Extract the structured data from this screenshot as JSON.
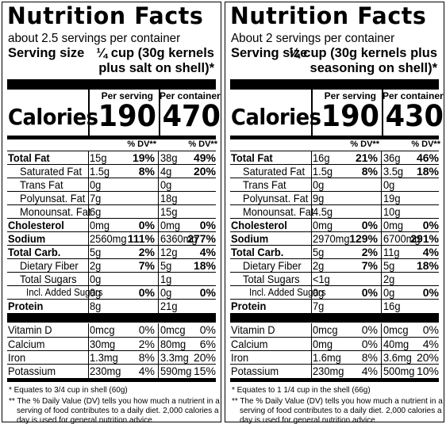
{
  "labels": [
    {
      "title": "Nutrition Facts",
      "servings_per_container": "about 2.5 servings per container",
      "serving_size_label": "Serving size",
      "serving_size_line1": "¼ cup (30g kernels",
      "serving_size_line2": "plus salt on shell)*",
      "per_serving_header": "Per serving",
      "per_container_header": "Per container",
      "calories_label": "Calories",
      "calories_serving": "190",
      "calories_container": "470",
      "dv_header_serving": "% DV**",
      "dv_header_container": "% DV**",
      "nutrients": [
        {
          "label": "Total Fat",
          "amt1": "15g",
          "dv1": "19%",
          "amt2": "38g",
          "dv2": "49%"
        },
        {
          "label": "Saturated Fat",
          "amt1": "1.5g",
          "dv1": "8%",
          "amt2": "4g",
          "dv2": "20%"
        },
        {
          "label": "Trans Fat",
          "amt1": "0g",
          "dv1": "",
          "amt2": "0g",
          "dv2": ""
        },
        {
          "label": "Polyunsat. Fat",
          "amt1": "7g",
          "dv1": "",
          "amt2": "18g",
          "dv2": ""
        },
        {
          "label": "Monounsat. Fat",
          "amt1": "6g",
          "dv1": "",
          "amt2": "15g",
          "dv2": ""
        },
        {
          "label": "Cholesterol",
          "amt1": "0mg",
          "dv1": "0%",
          "amt2": "0mg",
          "dv2": "0%"
        },
        {
          "label": "Sodium",
          "amt1": "2560mg",
          "dv1": "111%",
          "amt2": "6360mg",
          "dv2": "277%"
        },
        {
          "label": "Total Carb.",
          "amt1": "5g",
          "dv1": "2%",
          "amt2": "12g",
          "dv2": "4%"
        },
        {
          "label": "Dietary Fiber",
          "amt1": "2g",
          "dv1": "7%",
          "amt2": "5g",
          "dv2": "18%"
        },
        {
          "label": "Total Sugars",
          "amt1": "0g",
          "dv1": "",
          "amt2": "1g",
          "dv2": ""
        },
        {
          "label": "Incl. Added Sugars",
          "amt1": "0g",
          "dv1": "0%",
          "amt2": "0g",
          "dv2": "0%"
        },
        {
          "label": "Protein",
          "amt1": "8g",
          "dv1": "",
          "amt2": "21g",
          "dv2": ""
        }
      ],
      "vitamins": [
        {
          "label": "Vitamin D",
          "amt1": "0mcg",
          "dv1": "0%",
          "amt2": "0mcg",
          "dv2": "0%"
        },
        {
          "label": "Calcium",
          "amt1": "30mg",
          "dv1": "2%",
          "amt2": "80mg",
          "dv2": "6%"
        },
        {
          "label": "Iron",
          "amt1": "1.3mg",
          "dv1": "8%",
          "amt2": "3.3mg",
          "dv2": "20%"
        },
        {
          "label": "Potassium",
          "amt1": "230mg",
          "dv1": "4%",
          "amt2": "590mg",
          "dv2": "15%"
        }
      ],
      "footnote1": "* Equates to 3/4 cup in shell (60g)",
      "footnote2_line1": "** The % Daily Value (DV) tells you how much a nutrient in a",
      "footnote2_line2": "serving of food contributes to a daily diet. 2,000 calories a",
      "footnote2_line3": "day is used for general nutrition advice."
    },
    {
      "title": "Nutrition Facts",
      "servings_per_container": "About 2 servings per container",
      "serving_size_label": "Serving size",
      "serving_size_line1": "¼ cup (30g kernels plus",
      "serving_size_line2": "seasoning on shell)*",
      "per_serving_header": "Per serving",
      "per_container_header": "Per container",
      "calories_label": "Calories",
      "calories_serving": "190",
      "calories_container": "430",
      "dv_header_serving": "% DV**",
      "dv_header_container": "% DV**",
      "nutrients": [
        {
          "label": "Total Fat",
          "amt1": "16g",
          "dv1": "21%",
          "amt2": "36g",
          "dv2": "46%"
        },
        {
          "label": "Saturated Fat",
          "amt1": "1.5g",
          "dv1": "8%",
          "amt2": "3.5g",
          "dv2": "18%"
        },
        {
          "label": "Trans Fat",
          "amt1": "0g",
          "dv1": "",
          "amt2": "0g",
          "dv2": ""
        },
        {
          "label": "Polyunsat. Fat",
          "amt1": "9g",
          "dv1": "",
          "amt2": "19g",
          "dv2": ""
        },
        {
          "label": "Monounsat. Fat",
          "amt1": "4.5g",
          "dv1": "",
          "amt2": "10g",
          "dv2": ""
        },
        {
          "label": "Cholesterol",
          "amt1": "0mg",
          "dv1": "0%",
          "amt2": "0mg",
          "dv2": "0%"
        },
        {
          "label": "Sodium",
          "amt1": "2970mg",
          "dv1": "129%",
          "amt2": "6700mg",
          "dv2": "291%"
        },
        {
          "label": "Total Carb.",
          "amt1": "5g",
          "dv1": "2%",
          "amt2": "11g",
          "dv2": "4%"
        },
        {
          "label": "Dietary Fiber",
          "amt1": "2g",
          "dv1": "7%",
          "amt2": "5g",
          "dv2": "18%"
        },
        {
          "label": "Total Sugars",
          "amt1": "<1g",
          "dv1": "",
          "amt2": "2g",
          "dv2": ""
        },
        {
          "label": "Incl. Added Sugars",
          "amt1": "0g",
          "dv1": "0%",
          "amt2": "0g",
          "dv2": "0%"
        },
        {
          "label": "Protein",
          "amt1": "7g",
          "dv1": "",
          "amt2": "16g",
          "dv2": ""
        }
      ],
      "vitamins": [
        {
          "label": "Vitamin D",
          "amt1": "0mcg",
          "dv1": "0%",
          "amt2": "0mcg",
          "dv2": "0%"
        },
        {
          "label": "Calcium",
          "amt1": "0mg",
          "dv1": "0%",
          "amt2": "40mg",
          "dv2": "4%"
        },
        {
          "label": "Iron",
          "amt1": "1.6mg",
          "dv1": "8%",
          "amt2": "3.6mg",
          "dv2": "20%"
        },
        {
          "label": "Potassium",
          "amt1": "230mg",
          "dv1": "4%",
          "amt2": "500mg",
          "dv2": "10%"
        }
      ],
      "footnote1": "* Equates to 1 1/4 cup in the shell (66g)",
      "footnote2_line1": "** The % Daily Value (DV) tells you how much a nutrient in a",
      "footnote2_line2": "serving of food contributes to a daily diet. 2,000 calories a",
      "footnote2_line3": "day is used for general nutrition advice."
    }
  ]
}
